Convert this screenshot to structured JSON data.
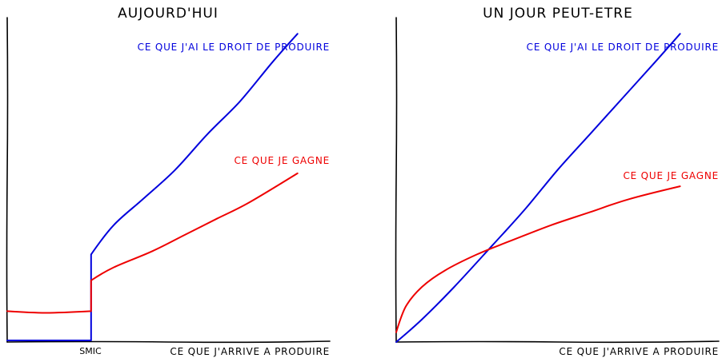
{
  "chart_data": [
    {
      "type": "line",
      "title": "AUJOURD'HUI",
      "xlabel": "CE QUE J'ARRIVE A PRODUIRE",
      "ylabel": "",
      "x_ticks": [
        "SMIC"
      ],
      "grid": false,
      "series": [
        {
          "name": "CE QUE J'AI LE DROIT DE PRODUIRE",
          "color": "#0000dd",
          "points": [
            [
              0.0,
              0.005
            ],
            [
              0.26,
              0.005
            ],
            [
              0.26,
              0.27
            ],
            [
              0.33,
              0.36
            ],
            [
              0.42,
              0.44
            ],
            [
              0.52,
              0.53
            ],
            [
              0.62,
              0.64
            ],
            [
              0.72,
              0.74
            ],
            [
              0.82,
              0.86
            ],
            [
              0.9,
              0.95
            ]
          ]
        },
        {
          "name": "CE QUE JE GAGNE",
          "color": "#ee0000",
          "points": [
            [
              0.0,
              0.095
            ],
            [
              0.12,
              0.09
            ],
            [
              0.26,
              0.095
            ],
            [
              0.26,
              0.19
            ],
            [
              0.33,
              0.23
            ],
            [
              0.45,
              0.28
            ],
            [
              0.55,
              0.33
            ],
            [
              0.65,
              0.38
            ],
            [
              0.75,
              0.43
            ],
            [
              0.9,
              0.52
            ]
          ]
        }
      ]
    },
    {
      "type": "line",
      "title": "UN JOUR PEUT-ETRE",
      "xlabel": "CE QUE J'ARRIVE A PRODUIRE",
      "ylabel": "",
      "grid": false,
      "series": [
        {
          "name": "CE QUE J'AI LE DROIT DE PRODUIRE",
          "color": "#0000dd",
          "points": [
            [
              0.0,
              0.0
            ],
            [
              0.08,
              0.07
            ],
            [
              0.18,
              0.17
            ],
            [
              0.3,
              0.3
            ],
            [
              0.4,
              0.41
            ],
            [
              0.5,
              0.53
            ],
            [
              0.6,
              0.64
            ],
            [
              0.7,
              0.75
            ],
            [
              0.8,
              0.86
            ],
            [
              0.88,
              0.95
            ]
          ]
        },
        {
          "name": "CE QUE JE GAGNE",
          "color": "#ee0000",
          "points": [
            [
              0.0,
              0.03
            ],
            [
              0.03,
              0.11
            ],
            [
              0.08,
              0.17
            ],
            [
              0.15,
              0.22
            ],
            [
              0.25,
              0.27
            ],
            [
              0.35,
              0.31
            ],
            [
              0.48,
              0.36
            ],
            [
              0.6,
              0.4
            ],
            [
              0.72,
              0.44
            ],
            [
              0.88,
              0.48
            ]
          ]
        }
      ]
    }
  ]
}
